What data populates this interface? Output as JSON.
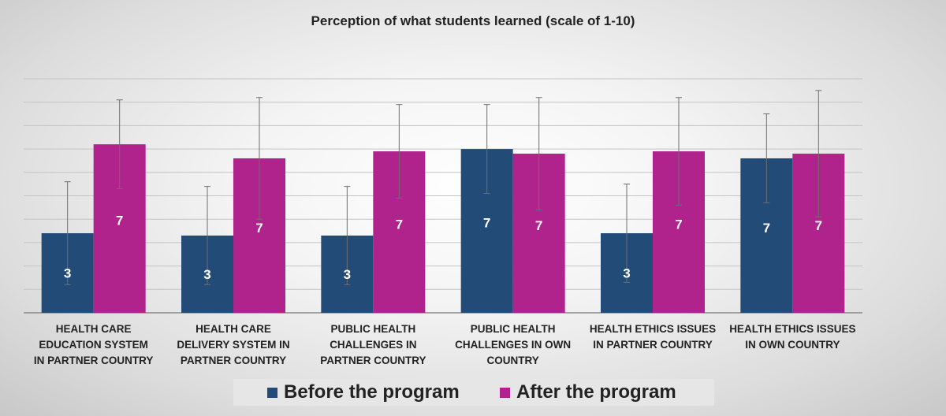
{
  "chart_data": {
    "type": "bar",
    "title": "Perception of what students learned (scale of 1-10)",
    "categories": [
      [
        "HEALTH CARE",
        "EDUCATION SYSTEM",
        "IN PARTNER COUNTRY"
      ],
      [
        "HEALTH CARE",
        "DELIVERY SYSTEM IN",
        "PARTNER COUNTRY"
      ],
      [
        "PUBLIC HEALTH",
        "CHALLENGES IN",
        "PARTNER COUNTRY"
      ],
      [
        "PUBLIC HEALTH",
        "CHALLENGES IN OWN",
        "COUNTRY"
      ],
      [
        "HEALTH ETHICS ISSUES",
        "IN PARTNER COUNTRY"
      ],
      [
        "HEALTH ETHICS ISSUES",
        "IN OWN COUNTRY"
      ]
    ],
    "series": [
      {
        "name": "Before the program",
        "color": "#234b78",
        "values": [
          3.4,
          3.3,
          3.3,
          7.0,
          3.4,
          6.6
        ],
        "labels": [
          "3",
          "3",
          "3",
          "7",
          "3",
          "7"
        ],
        "error": [
          2.2,
          2.1,
          2.1,
          1.9,
          2.1,
          1.9
        ]
      },
      {
        "name": "After the program",
        "color": "#b0238c",
        "values": [
          7.2,
          6.6,
          6.9,
          6.8,
          6.9,
          6.8
        ],
        "labels": [
          "7",
          "7",
          "7",
          "7",
          "7",
          "7"
        ],
        "error": [
          1.9,
          2.6,
          2.0,
          2.4,
          2.3,
          2.7
        ]
      }
    ],
    "ylim": [
      0,
      10
    ],
    "gridlines": 10,
    "legend_position": "bottom",
    "xlabel": "",
    "ylabel": ""
  }
}
